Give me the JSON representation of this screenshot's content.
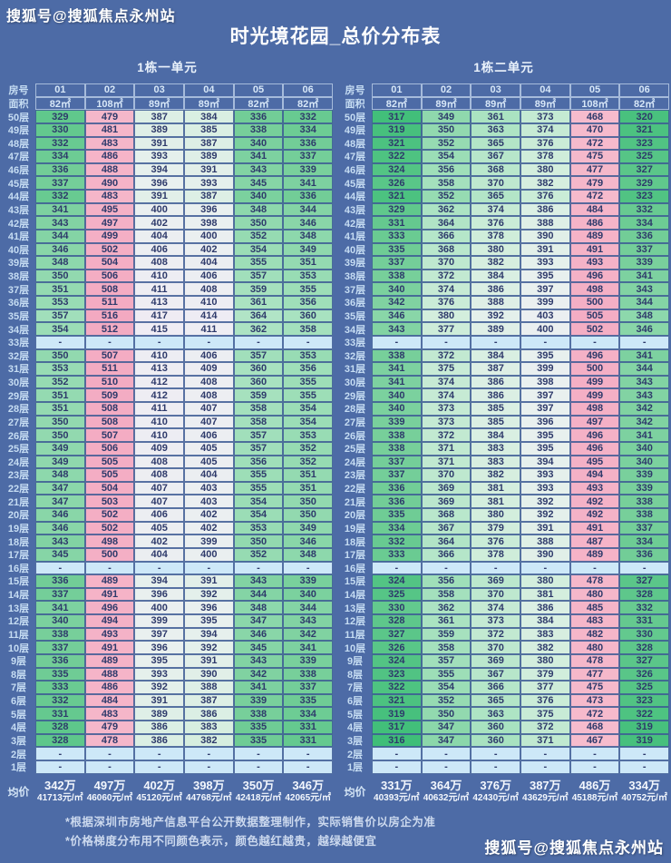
{
  "watermark_top": "搜狐号@搜狐焦点永州站",
  "watermark_bottom": "搜狐号@搜狐焦点永州站",
  "title": "时光境花园_总价分布表",
  "labels": {
    "room": "房号",
    "area": "面积",
    "avg": "均价",
    "floor_suffix": "层",
    "empty": "-"
  },
  "footnotes": [
    "*根据深圳市房地产信息平台公开数据整理制作，实际销售价以房企为准",
    "*价格梯度分布用不同颜色表示，颜色越红越贵，越绿越便宜"
  ],
  "colors": {
    "background": "#4d6ba6",
    "cell_text": "#2e3a6b",
    "floor_label_text": "#c6ddf3",
    "header_text": "#d8e8f8",
    "empty_cell": "#cde8f8",
    "heat_cheap_green": "#3fbe78",
    "heat_mid_white": "#eff0f4",
    "heat_expensive_pink": "#f3a9c1",
    "white": "#ffffff"
  },
  "chart_data": {
    "type": "heatmap",
    "title": "时光境花园_总价分布表",
    "value_unit": "万元",
    "color_rule": "颜色越红越贵，越绿越便宜",
    "value_range": [
      316,
      516
    ],
    "floors": [
      50,
      49,
      48,
      47,
      46,
      45,
      44,
      43,
      42,
      41,
      40,
      39,
      38,
      37,
      36,
      35,
      34,
      33,
      32,
      31,
      30,
      29,
      28,
      27,
      26,
      25,
      24,
      23,
      22,
      21,
      20,
      19,
      18,
      17,
      16,
      15,
      14,
      13,
      12,
      11,
      10,
      9,
      8,
      7,
      6,
      5,
      4,
      3,
      2,
      1
    ],
    "sections": [
      {
        "name": "1栋一单元",
        "room_numbers": [
          "01",
          "02",
          "03",
          "04",
          "05",
          "06"
        ],
        "areas": [
          "82㎡",
          "108㎡",
          "89㎡",
          "89㎡",
          "82㎡",
          "82㎡"
        ],
        "rows": [
          [
            329,
            479,
            387,
            384,
            336,
            332
          ],
          [
            330,
            481,
            389,
            385,
            338,
            334
          ],
          [
            332,
            483,
            391,
            387,
            340,
            336
          ],
          [
            334,
            486,
            393,
            389,
            341,
            337
          ],
          [
            336,
            488,
            394,
            391,
            343,
            339
          ],
          [
            337,
            490,
            396,
            393,
            345,
            341
          ],
          [
            332,
            483,
            391,
            387,
            340,
            336
          ],
          [
            341,
            495,
            400,
            396,
            348,
            344
          ],
          [
            343,
            497,
            402,
            398,
            350,
            346
          ],
          [
            344,
            499,
            404,
            400,
            352,
            348
          ],
          [
            346,
            502,
            406,
            402,
            354,
            349
          ],
          [
            348,
            504,
            408,
            404,
            355,
            351
          ],
          [
            350,
            506,
            410,
            406,
            357,
            353
          ],
          [
            351,
            508,
            411,
            408,
            359,
            355
          ],
          [
            353,
            511,
            413,
            410,
            361,
            356
          ],
          [
            357,
            516,
            417,
            414,
            364,
            360
          ],
          [
            354,
            512,
            415,
            411,
            362,
            358
          ],
          null,
          [
            350,
            507,
            410,
            406,
            357,
            353
          ],
          [
            353,
            511,
            413,
            409,
            360,
            356
          ],
          [
            352,
            510,
            412,
            408,
            360,
            355
          ],
          [
            351,
            509,
            412,
            408,
            359,
            355
          ],
          [
            351,
            508,
            411,
            407,
            358,
            354
          ],
          [
            350,
            508,
            410,
            407,
            358,
            354
          ],
          [
            350,
            507,
            410,
            406,
            357,
            353
          ],
          [
            349,
            506,
            409,
            405,
            357,
            352
          ],
          [
            349,
            505,
            408,
            405,
            356,
            352
          ],
          [
            348,
            505,
            408,
            404,
            355,
            351
          ],
          [
            347,
            504,
            407,
            403,
            355,
            351
          ],
          [
            347,
            503,
            407,
            403,
            354,
            350
          ],
          [
            346,
            502,
            406,
            402,
            354,
            350
          ],
          [
            346,
            502,
            405,
            402,
            353,
            349
          ],
          [
            343,
            498,
            402,
            399,
            350,
            346
          ],
          [
            345,
            500,
            404,
            400,
            352,
            348
          ],
          null,
          [
            336,
            489,
            394,
            391,
            343,
            339
          ],
          [
            337,
            491,
            396,
            392,
            344,
            340
          ],
          [
            341,
            496,
            400,
            396,
            348,
            344
          ],
          [
            340,
            494,
            399,
            395,
            347,
            343
          ],
          [
            338,
            493,
            397,
            394,
            346,
            342
          ],
          [
            337,
            491,
            396,
            392,
            345,
            341
          ],
          [
            336,
            489,
            395,
            391,
            343,
            339
          ],
          [
            335,
            488,
            393,
            390,
            342,
            338
          ],
          [
            333,
            486,
            392,
            388,
            341,
            337
          ],
          [
            332,
            484,
            391,
            387,
            339,
            335
          ],
          [
            331,
            483,
            389,
            386,
            338,
            334
          ],
          [
            328,
            479,
            386,
            383,
            335,
            331
          ],
          [
            328,
            478,
            386,
            382,
            335,
            331
          ],
          null,
          null
        ],
        "avg_total": [
          "342万",
          "497万",
          "402万",
          "398万",
          "350万",
          "346万"
        ],
        "avg_per_sqm": [
          "41713元/㎡",
          "46060元/㎡",
          "45120元/㎡",
          "44768元/㎡",
          "42418元/㎡",
          "42065元/㎡"
        ]
      },
      {
        "name": "1栋二单元",
        "room_numbers": [
          "01",
          "02",
          "03",
          "04",
          "05",
          "06"
        ],
        "areas": [
          "82㎡",
          "89㎡",
          "89㎡",
          "89㎡",
          "108㎡",
          "82㎡"
        ],
        "rows": [
          [
            317,
            349,
            361,
            373,
            468,
            320
          ],
          [
            319,
            350,
            363,
            374,
            470,
            321
          ],
          [
            321,
            352,
            365,
            376,
            472,
            323
          ],
          [
            322,
            354,
            367,
            378,
            475,
            325
          ],
          [
            324,
            356,
            368,
            380,
            477,
            327
          ],
          [
            326,
            358,
            370,
            382,
            479,
            329
          ],
          [
            321,
            352,
            365,
            376,
            472,
            323
          ],
          [
            329,
            362,
            374,
            386,
            484,
            332
          ],
          [
            331,
            364,
            376,
            388,
            486,
            334
          ],
          [
            333,
            366,
            378,
            390,
            489,
            336
          ],
          [
            335,
            368,
            380,
            391,
            491,
            337
          ],
          [
            337,
            370,
            382,
            393,
            493,
            339
          ],
          [
            338,
            372,
            384,
            395,
            496,
            341
          ],
          [
            340,
            374,
            386,
            397,
            498,
            343
          ],
          [
            342,
            376,
            388,
            399,
            500,
            344
          ],
          [
            346,
            380,
            392,
            403,
            505,
            348
          ],
          [
            343,
            377,
            389,
            400,
            502,
            346
          ],
          null,
          [
            338,
            372,
            384,
            395,
            496,
            341
          ],
          [
            341,
            375,
            387,
            399,
            500,
            344
          ],
          [
            341,
            374,
            386,
            398,
            499,
            343
          ],
          [
            340,
            374,
            386,
            397,
            499,
            343
          ],
          [
            340,
            373,
            385,
            397,
            498,
            342
          ],
          [
            339,
            373,
            385,
            396,
            497,
            342
          ],
          [
            338,
            372,
            384,
            395,
            496,
            341
          ],
          [
            338,
            371,
            383,
            395,
            496,
            340
          ],
          [
            337,
            371,
            383,
            394,
            495,
            340
          ],
          [
            337,
            370,
            382,
            393,
            494,
            339
          ],
          [
            336,
            369,
            381,
            393,
            493,
            339
          ],
          [
            336,
            369,
            381,
            392,
            492,
            338
          ],
          [
            335,
            368,
            380,
            392,
            492,
            338
          ],
          [
            334,
            367,
            379,
            391,
            491,
            337
          ],
          [
            332,
            364,
            376,
            388,
            487,
            334
          ],
          [
            333,
            366,
            378,
            390,
            489,
            336
          ],
          null,
          [
            324,
            356,
            369,
            380,
            478,
            327
          ],
          [
            325,
            358,
            370,
            381,
            480,
            328
          ],
          [
            330,
            362,
            374,
            386,
            485,
            332
          ],
          [
            328,
            361,
            373,
            384,
            483,
            331
          ],
          [
            327,
            359,
            372,
            383,
            482,
            330
          ],
          [
            326,
            358,
            370,
            382,
            480,
            328
          ],
          [
            324,
            357,
            369,
            380,
            478,
            327
          ],
          [
            323,
            355,
            367,
            379,
            477,
            326
          ],
          [
            322,
            354,
            366,
            377,
            475,
            325
          ],
          [
            321,
            352,
            365,
            376,
            473,
            323
          ],
          [
            319,
            350,
            363,
            375,
            472,
            322
          ],
          [
            317,
            347,
            360,
            372,
            468,
            319
          ],
          [
            316,
            347,
            360,
            371,
            467,
            319
          ],
          null,
          null
        ],
        "avg_total": [
          "331万",
          "364万",
          "376万",
          "387万",
          "486万",
          "334万"
        ],
        "avg_per_sqm": [
          "40393元/㎡",
          "40632元/㎡",
          "42430元/㎡",
          "43629元/㎡",
          "45188元/㎡",
          "40752元/㎡"
        ]
      }
    ]
  }
}
